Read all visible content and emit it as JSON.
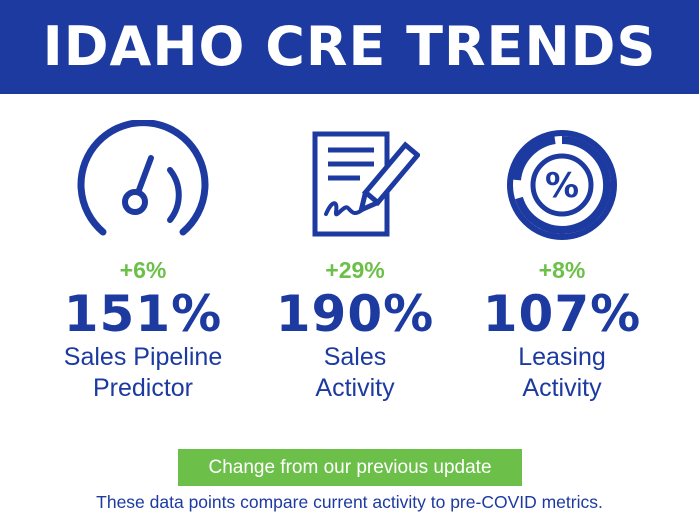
{
  "banner": {
    "title": "IDAHO CRE TRENDS"
  },
  "metrics": [
    {
      "icon": "speedometer-icon",
      "change": "+6%",
      "value": "151%",
      "label_line1": "Sales Pipeline",
      "label_line2": "Predictor"
    },
    {
      "icon": "signed-document-icon",
      "change": "+29%",
      "value": "190%",
      "label_line1": "Sales",
      "label_line2": "Activity"
    },
    {
      "icon": "percent-donut-icon",
      "change": "+8%",
      "value": "107%",
      "label_line1": "Leasing",
      "label_line2": "Activity"
    }
  ],
  "legend": {
    "text": "Change from our previous update"
  },
  "footnote": "These data points compare current activity to pre-COVID metrics.",
  "colors": {
    "brand_blue": "#1c3aa0",
    "accent_green": "#6cc04a",
    "background": "#ffffff"
  }
}
